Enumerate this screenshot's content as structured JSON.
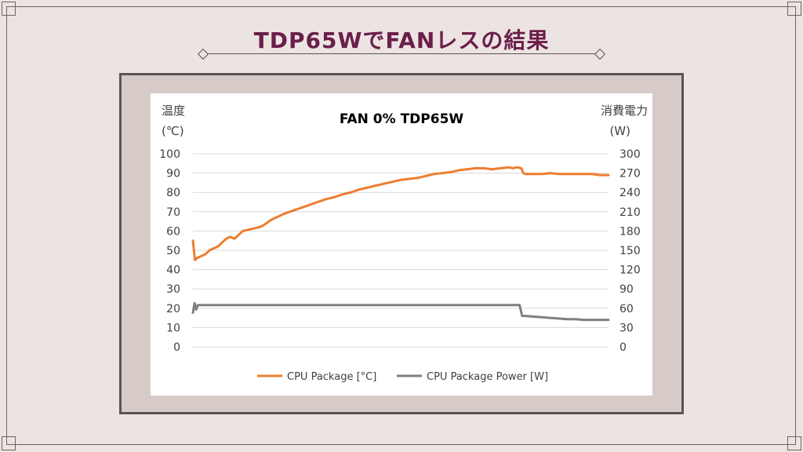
{
  "slide": {
    "title": "TDP65WでFANレスの結果"
  },
  "chart_data": {
    "type": "line",
    "title": "FAN 0% TDP65W",
    "y_left_label_line1": "温度",
    "y_left_label_line2": "(℃)",
    "y_right_label_line1": "消費電力",
    "y_right_label_line2": "(W)",
    "ylim_left": [
      0,
      100
    ],
    "ylim_right": [
      0,
      300
    ],
    "y_left_ticks": [
      "100",
      "90",
      "80",
      "70",
      "60",
      "50",
      "40",
      "30",
      "20",
      "10",
      "0"
    ],
    "y_right_ticks": [
      "300",
      "270",
      "240",
      "210",
      "180",
      "150",
      "120",
      "90",
      "60",
      "30",
      "0"
    ],
    "grid": true,
    "legend_position": "bottom",
    "x_domain": [
      0,
      100
    ],
    "series": [
      {
        "name": "CPU Package [°C]",
        "axis": "left",
        "color": "#ed7d31",
        "x": [
          0,
          0.5,
          1,
          2,
          3,
          4,
          5,
          6,
          7,
          8,
          9,
          10,
          11,
          12,
          13,
          14,
          15,
          16,
          17,
          18,
          19,
          20,
          22,
          24,
          26,
          28,
          30,
          32,
          34,
          36,
          38,
          40,
          42,
          44,
          46,
          48,
          50,
          52,
          54,
          56,
          58,
          60,
          62,
          64,
          66,
          68,
          70,
          72,
          74,
          76,
          77,
          78,
          79,
          79.5,
          80,
          81,
          82,
          84,
          86,
          88,
          90,
          92,
          94,
          96,
          98,
          100
        ],
        "values": [
          55,
          45,
          46,
          47,
          48,
          50,
          51,
          52,
          54,
          56,
          57,
          56,
          58,
          60,
          60.5,
          61,
          61.5,
          62,
          63,
          64.5,
          66,
          67,
          69,
          70.5,
          72,
          73.5,
          75,
          76.5,
          77.5,
          79,
          80,
          81.5,
          82.5,
          83.5,
          84.5,
          85.5,
          86.5,
          87,
          87.5,
          88.5,
          89.5,
          90,
          90.5,
          91.5,
          92,
          92.5,
          92.5,
          92,
          92.5,
          93,
          92.5,
          93,
          92.5,
          90,
          89.5,
          89.5,
          89.5,
          89.5,
          90,
          89.5,
          89.5,
          89.5,
          89.5,
          89.5,
          89,
          89
        ]
      },
      {
        "name": "CPU Package Power [W]",
        "axis": "right",
        "color": "#7f7f7f",
        "x": [
          0,
          0.4,
          0.8,
          1.2,
          10,
          20,
          30,
          40,
          50,
          60,
          70,
          78,
          78.6,
          79.2,
          80,
          82,
          84,
          86,
          88,
          90,
          92,
          94,
          96,
          98,
          100
        ],
        "values": [
          53,
          68,
          58,
          65,
          65,
          65,
          65,
          65,
          65,
          65,
          65,
          65,
          65,
          48,
          48,
          47,
          46,
          45,
          44,
          43,
          43,
          42,
          42,
          42,
          42
        ]
      }
    ]
  }
}
